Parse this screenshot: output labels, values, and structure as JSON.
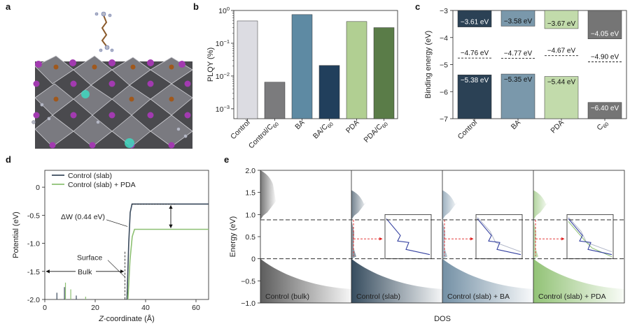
{
  "panel_labels": {
    "a": "a",
    "b": "b",
    "c": "c",
    "d": "d",
    "e": "e"
  },
  "colors": {
    "control": "#dcdce2",
    "control_c60": "#7b7b7d",
    "ba": "#5e8aa3",
    "ba_c60": "#213f5c",
    "pda": "#b1cf92",
    "pda_c60": "#5a7c48",
    "c_control": "#2b4155",
    "c_ba": "#7a98ab",
    "c_pda": "#c2dbab",
    "c_c60": "#757575",
    "slab": "#3a4a5c",
    "slab_pda": "#8cc072"
  },
  "chart_data": [
    {
      "panel": "b",
      "type": "bar",
      "yscale": "log",
      "ylabel": "PLQY (%)",
      "ylim": [
        0.0005,
        1
      ],
      "yticks": [
        {
          "value": 0.001,
          "base": "10",
          "exp": "−3"
        },
        {
          "value": 0.01,
          "base": "10",
          "exp": "−2"
        },
        {
          "value": 0.1,
          "base": "10",
          "exp": "−1"
        },
        {
          "value": 1,
          "base": "10",
          "exp": "0"
        }
      ],
      "categories": [
        {
          "label": "Control",
          "sub": ""
        },
        {
          "label": "Control/C",
          "sub": "60"
        },
        {
          "label": "BA",
          "sub": ""
        },
        {
          "label": "BA/C",
          "sub": "60"
        },
        {
          "label": "PDA",
          "sub": ""
        },
        {
          "label": "PDA/C",
          "sub": "60"
        }
      ],
      "values": [
        0.48,
        0.0065,
        0.75,
        0.021,
        0.46,
        0.3
      ]
    },
    {
      "panel": "c",
      "type": "bar",
      "ylabel": "Binding energy (eV)",
      "ylim": [
        -7,
        -3
      ],
      "yticks": [
        {
          "value": -3,
          "label": "−3"
        },
        {
          "value": -4,
          "label": "−4"
        },
        {
          "value": -5,
          "label": "−5"
        },
        {
          "value": -6,
          "label": "−6"
        },
        {
          "value": -7,
          "label": "−7"
        }
      ],
      "categories": [
        {
          "label": "Control",
          "sub": ""
        },
        {
          "label": "BA",
          "sub": ""
        },
        {
          "label": "PDA",
          "sub": ""
        },
        {
          "label": "C",
          "sub": "60"
        }
      ],
      "cbm": [
        -3.61,
        -3.58,
        -3.67,
        -4.05
      ],
      "vbm": [
        -5.38,
        -5.35,
        -5.44,
        -6.4
      ],
      "fermi": [
        -4.76,
        -4.77,
        -4.67,
        -4.9
      ],
      "cbm_labels": [
        "−3.61 eV",
        "−3.58 eV",
        "−3.67 eV",
        "−4.05 eV"
      ],
      "vbm_labels": [
        "−5.38 eV",
        "−5.35 eV",
        "−5.44 eV",
        "−6.40 eV"
      ],
      "fermi_labels": [
        "−4.76 eV",
        "−4.77 eV",
        "−4.67 eV",
        "−4.90 eV"
      ]
    },
    {
      "panel": "d",
      "type": "line",
      "xlabel_prefix": "Z",
      "xlabel_suffix": "-coordinate (Å)",
      "ylabel": "Potential (eV)",
      "xlim": [
        0,
        65
      ],
      "ylim": [
        -2.0,
        0.3
      ],
      "xticks": [
        {
          "value": 0,
          "label": "0"
        },
        {
          "value": 20,
          "label": "20"
        },
        {
          "value": 40,
          "label": "40"
        },
        {
          "value": 60,
          "label": "60"
        }
      ],
      "yticks": [
        {
          "value": 0,
          "label": "0"
        },
        {
          "value": -0.5,
          "label": "-0.5"
        },
        {
          "value": -1.0,
          "label": "-1.0"
        },
        {
          "value": -1.5,
          "label": "-1.5"
        },
        {
          "value": -2.0,
          "label": "-2.0"
        }
      ],
      "series": [
        {
          "name": "Control (slab)",
          "x": [
            32.6,
            33.3,
            33.9,
            34.6,
            65
          ],
          "y": [
            -2.0,
            -1.0,
            -0.45,
            -0.3,
            -0.3
          ]
        },
        {
          "name": "Control (slab) + PDA",
          "x": [
            33.0,
            33.8,
            34.7,
            35.6,
            65
          ],
          "y": [
            -2.0,
            -1.3,
            -0.88,
            -0.75,
            -0.75
          ]
        }
      ],
      "spikes_slab": [
        {
          "x": 4.8,
          "y": -1.88
        },
        {
          "x": 7.8,
          "y": -1.78
        },
        {
          "x": 12.5,
          "y": -1.93
        }
      ],
      "spikes_pda": [
        {
          "x": 8.2,
          "y": -1.7
        },
        {
          "x": 10.3,
          "y": -1.82
        },
        {
          "x": 16.2,
          "y": -1.95
        }
      ],
      "annotations": {
        "delta_w": "ΔW (0.44 eV)",
        "surface": "Surface",
        "bulk": "Bulk"
      }
    },
    {
      "panel": "e",
      "type": "area",
      "ylabel": "Energy (eV)",
      "xlabel": "DOS",
      "ylim": [
        -1.0,
        2.0
      ],
      "yticks": [
        {
          "value": 2.0,
          "label": "2.0"
        },
        {
          "value": 1.5,
          "label": "1.5"
        },
        {
          "value": 1.0,
          "label": "1.0"
        },
        {
          "value": 0.5,
          "label": "0.5"
        },
        {
          "value": 0.0,
          "label": "0"
        },
        {
          "value": -0.5,
          "label": "−0.5"
        },
        {
          "value": -1.0,
          "label": "−1.0"
        }
      ],
      "cbm_line": 0.88,
      "vbm_line": 0.0,
      "subpanels": [
        {
          "label": "Control (bulk)",
          "color": "#555555",
          "inset": false
        },
        {
          "label": "Control (slab)",
          "color": "#2c4356",
          "inset": true
        },
        {
          "label": "Control (slab) + BA",
          "color": "#6c8aa0",
          "inset": true
        },
        {
          "label": "Control (slab) + PDA",
          "color": "#8cbf6e",
          "inset": true
        }
      ]
    }
  ]
}
